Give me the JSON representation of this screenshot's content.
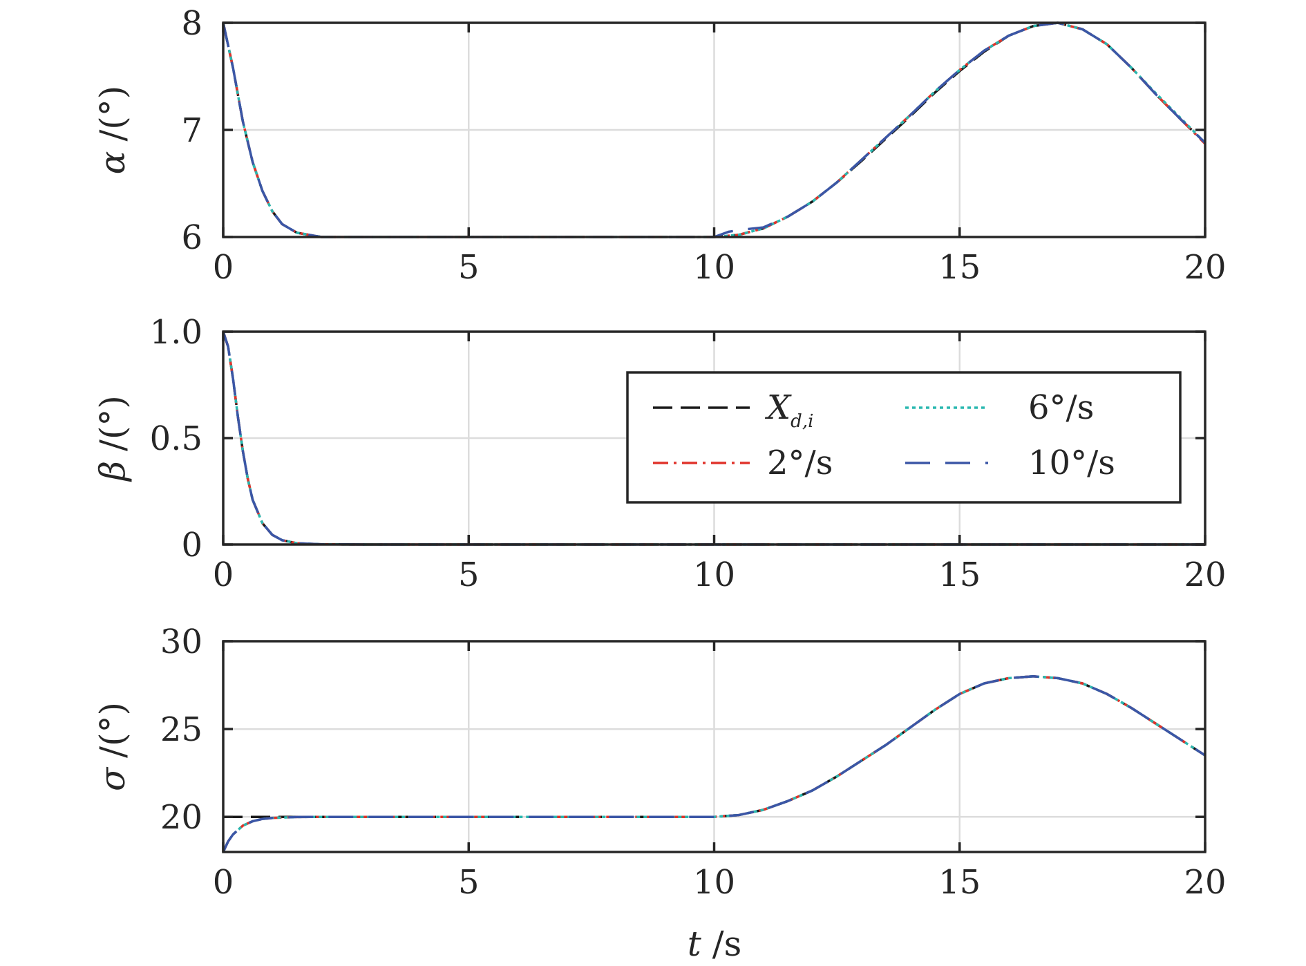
{
  "chart_data": [
    {
      "type": "line",
      "ylabel": "α /(°)",
      "ylabel_main": "α",
      "ylabel_unit": "/(°)",
      "xlim": [
        0,
        20
      ],
      "ylim": [
        6,
        8
      ],
      "xticks": [
        "0",
        "5",
        "10",
        "15",
        "20"
      ],
      "yticks": [
        "6",
        "7",
        "8"
      ],
      "grid": true,
      "series": [
        {
          "name": "X_{d,i}",
          "x": [
            0,
            0.2,
            0.4,
            0.6,
            0.8,
            1,
            1.2,
            1.5,
            2,
            3,
            5,
            8,
            10,
            10.5,
            11,
            11.5,
            12,
            12.5,
            13,
            13.5,
            14,
            14.5,
            15,
            15.5,
            16,
            16.5,
            17,
            17.5,
            18,
            18.5,
            19,
            19.5,
            20
          ],
          "y": [
            8,
            7.58,
            7.08,
            6.7,
            6.43,
            6.24,
            6.12,
            6.04,
            6.0,
            6.0,
            6.0,
            6.0,
            6.0,
            6.02,
            6.08,
            6.19,
            6.33,
            6.51,
            6.71,
            6.92,
            7.13,
            7.35,
            7.55,
            7.73,
            7.88,
            7.97,
            8.0,
            7.94,
            7.8,
            7.58,
            7.33,
            7.1,
            6.88
          ]
        },
        {
          "name": "2°/s",
          "x": [
            0,
            0.2,
            0.4,
            0.6,
            0.8,
            1,
            1.2,
            1.5,
            2,
            3,
            5,
            8,
            10,
            10.5,
            11,
            11.5,
            12,
            12.5,
            13,
            13.5,
            14,
            14.5,
            15,
            15.5,
            16,
            16.5,
            17,
            17.5,
            18,
            18.5,
            19,
            19.5,
            20
          ],
          "y": [
            8,
            7.58,
            7.08,
            6.7,
            6.43,
            6.24,
            6.12,
            6.04,
            6.0,
            6.0,
            6.0,
            6.0,
            6.0,
            6.02,
            6.08,
            6.19,
            6.33,
            6.51,
            6.72,
            6.93,
            7.14,
            7.36,
            7.56,
            7.74,
            7.88,
            7.97,
            8.0,
            7.94,
            7.8,
            7.58,
            7.33,
            7.1,
            6.87
          ]
        },
        {
          "name": "6°/s",
          "x": [
            0,
            0.2,
            0.4,
            0.6,
            0.8,
            1,
            1.2,
            1.5,
            2,
            3,
            5,
            8,
            10,
            10.5,
            11,
            11.5,
            12,
            12.5,
            13,
            13.5,
            14,
            14.5,
            15,
            15.5,
            16,
            16.5,
            17,
            17.5,
            18,
            18.5,
            19,
            19.5,
            20
          ],
          "y": [
            8,
            7.58,
            7.08,
            6.7,
            6.43,
            6.24,
            6.12,
            6.04,
            6.0,
            6.0,
            6.0,
            6.0,
            6.0,
            6.02,
            6.08,
            6.19,
            6.33,
            6.51,
            6.72,
            6.93,
            7.14,
            7.36,
            7.56,
            7.74,
            7.88,
            7.97,
            8.0,
            7.94,
            7.8,
            7.58,
            7.34,
            7.11,
            6.88
          ]
        },
        {
          "name": "10°/s",
          "x": [
            0,
            0.2,
            0.4,
            0.6,
            0.8,
            1,
            1.2,
            1.5,
            2,
            3,
            5,
            8,
            10,
            10.3,
            10.6,
            11,
            11.5,
            12,
            12.5,
            13,
            13.5,
            14,
            14.5,
            15,
            15.5,
            16,
            16.5,
            17,
            17.5,
            18,
            18.5,
            19,
            19.5,
            20
          ],
          "y": [
            8,
            7.58,
            7.08,
            6.7,
            6.43,
            6.24,
            6.12,
            6.04,
            6.0,
            6.0,
            6.0,
            6.0,
            6.0,
            6.05,
            6.07,
            6.09,
            6.19,
            6.33,
            6.51,
            6.72,
            6.93,
            7.14,
            7.36,
            7.56,
            7.74,
            7.88,
            7.97,
            8.0,
            7.94,
            7.8,
            7.58,
            7.33,
            7.1,
            6.88
          ]
        }
      ]
    },
    {
      "type": "line",
      "ylabel": "β /(°)",
      "ylabel_main": "β",
      "ylabel_unit": "/(°)",
      "xlim": [
        0,
        20
      ],
      "ylim": [
        0,
        1
      ],
      "xticks": [
        "0",
        "5",
        "10",
        "15",
        "20"
      ],
      "yticks": [
        "0",
        "0.5",
        "1.0"
      ],
      "grid": true,
      "legend": {
        "location": "center-right",
        "columns": 2,
        "entries": [
          {
            "label_main": "X",
            "label_sub": "d,i"
          },
          {
            "label_main": "2°/s"
          },
          {
            "label_main": "6°/s"
          },
          {
            "label_main": "10°/s"
          }
        ]
      },
      "series": [
        {
          "name": "X_{d,i}",
          "x": [
            0,
            0.1,
            0.2,
            0.3,
            0.4,
            0.5,
            0.6,
            0.8,
            1,
            1.2,
            1.5,
            2,
            3,
            5,
            10,
            15,
            20
          ],
          "y": [
            1,
            0.93,
            0.78,
            0.6,
            0.44,
            0.31,
            0.21,
            0.1,
            0.045,
            0.02,
            0.006,
            0.001,
            0,
            0,
            0,
            0,
            0
          ]
        },
        {
          "name": "2°/s",
          "x": [
            0,
            0.1,
            0.2,
            0.3,
            0.4,
            0.5,
            0.6,
            0.8,
            1,
            1.2,
            1.5,
            2,
            3,
            5,
            10,
            15,
            20
          ],
          "y": [
            1,
            0.93,
            0.78,
            0.6,
            0.44,
            0.31,
            0.21,
            0.1,
            0.045,
            0.02,
            0.006,
            0.001,
            0,
            0,
            0,
            0,
            0
          ]
        },
        {
          "name": "6°/s",
          "x": [
            0,
            0.1,
            0.2,
            0.3,
            0.4,
            0.5,
            0.6,
            0.8,
            1,
            1.2,
            1.5,
            2,
            3,
            5,
            10,
            15,
            20
          ],
          "y": [
            1,
            0.93,
            0.78,
            0.6,
            0.44,
            0.31,
            0.21,
            0.1,
            0.045,
            0.02,
            0.006,
            0.001,
            0,
            0,
            0,
            0,
            0
          ]
        },
        {
          "name": "10°/s",
          "x": [
            0,
            0.1,
            0.2,
            0.3,
            0.4,
            0.5,
            0.6,
            0.8,
            1,
            1.2,
            1.5,
            2,
            3,
            5,
            10,
            15,
            20
          ],
          "y": [
            1,
            0.93,
            0.78,
            0.6,
            0.44,
            0.31,
            0.21,
            0.1,
            0.045,
            0.02,
            0.006,
            0.001,
            0,
            0,
            0,
            0,
            0
          ]
        }
      ]
    },
    {
      "type": "line",
      "ylabel": "σ /(°)",
      "ylabel_main": "σ",
      "ylabel_unit": "/(°)",
      "xlabel": "t /s",
      "xlabel_main": "t",
      "xlabel_unit": " /s",
      "xlim": [
        0,
        20
      ],
      "ylim": [
        18,
        30
      ],
      "xticks": [
        "0",
        "5",
        "10",
        "15",
        "20"
      ],
      "yticks": [
        "20",
        "25",
        "30"
      ],
      "grid": true,
      "series": [
        {
          "name": "X_{d,i}",
          "x": [
            0,
            0.1,
            0.2,
            0.4,
            0.6,
            0.8,
            1,
            1.5,
            2,
            5,
            10,
            10.5,
            11,
            11.5,
            12,
            12.5,
            13,
            13.5,
            14,
            14.5,
            15,
            15.5,
            16,
            16.5,
            17,
            17.5,
            18,
            18.5,
            19,
            19.5,
            20
          ],
          "y": [
            20,
            20,
            20,
            20,
            20,
            20,
            20,
            20,
            20,
            20,
            20,
            20.1,
            20.4,
            20.9,
            21.5,
            22.3,
            23.2,
            24.1,
            25.1,
            26.1,
            27.0,
            27.6,
            27.9,
            28.0,
            27.9,
            27.6,
            27.0,
            26.2,
            25.3,
            24.4,
            23.5
          ]
        },
        {
          "name": "2°/s",
          "x": [
            0,
            0.1,
            0.2,
            0.4,
            0.6,
            0.8,
            1,
            1.5,
            2,
            5,
            10,
            10.5,
            11,
            11.5,
            12,
            12.5,
            13,
            13.5,
            14,
            14.5,
            15,
            15.5,
            16,
            16.5,
            17,
            17.5,
            18,
            18.5,
            19,
            19.5,
            20
          ],
          "y": [
            18,
            18.6,
            19.0,
            19.5,
            19.75,
            19.88,
            19.94,
            19.99,
            20,
            20,
            20,
            20.1,
            20.4,
            20.9,
            21.5,
            22.3,
            23.2,
            24.1,
            25.1,
            26.1,
            27.0,
            27.6,
            27.9,
            28.0,
            27.9,
            27.6,
            27.0,
            26.2,
            25.3,
            24.4,
            23.5
          ]
        },
        {
          "name": "6°/s",
          "x": [
            0,
            0.1,
            0.2,
            0.4,
            0.6,
            0.8,
            1,
            1.5,
            2,
            5,
            10,
            10.5,
            11,
            11.5,
            12,
            12.5,
            13,
            13.5,
            14,
            14.5,
            15,
            15.5,
            16,
            16.5,
            17,
            17.5,
            18,
            18.5,
            19,
            19.5,
            20
          ],
          "y": [
            18,
            18.6,
            19.0,
            19.5,
            19.75,
            19.88,
            19.94,
            19.99,
            20,
            20,
            20,
            20.1,
            20.4,
            20.9,
            21.5,
            22.3,
            23.2,
            24.1,
            25.1,
            26.1,
            27.0,
            27.6,
            27.9,
            28.0,
            27.9,
            27.6,
            27.0,
            26.2,
            25.3,
            24.4,
            23.5
          ]
        },
        {
          "name": "10°/s",
          "x": [
            0,
            0.1,
            0.2,
            0.4,
            0.6,
            0.8,
            1,
            1.5,
            2,
            5,
            10,
            10.5,
            11,
            11.5,
            12,
            12.5,
            13,
            13.5,
            14,
            14.5,
            15,
            15.5,
            16,
            16.5,
            17,
            17.5,
            18,
            18.5,
            19,
            19.5,
            20
          ],
          "y": [
            18,
            18.6,
            19.0,
            19.5,
            19.75,
            19.88,
            19.94,
            19.99,
            20,
            20,
            20,
            20.1,
            20.4,
            20.9,
            21.5,
            22.3,
            23.2,
            24.1,
            25.1,
            26.1,
            27.0,
            27.6,
            27.9,
            28.0,
            27.9,
            27.6,
            27.0,
            26.2,
            25.3,
            24.4,
            23.5
          ]
        }
      ]
    }
  ],
  "series_styles": [
    {
      "color": "#1a1a1a",
      "dash": "28 12"
    },
    {
      "color": "#e0342b",
      "dash": "22 8 4 8"
    },
    {
      "color": "#2ab8b0",
      "dash": "5 5"
    },
    {
      "color": "#3b56a6",
      "dash": "36 22"
    }
  ],
  "colors": {
    "axis": "#262626",
    "grid": "#dcdcdc",
    "background": "#ffffff"
  }
}
